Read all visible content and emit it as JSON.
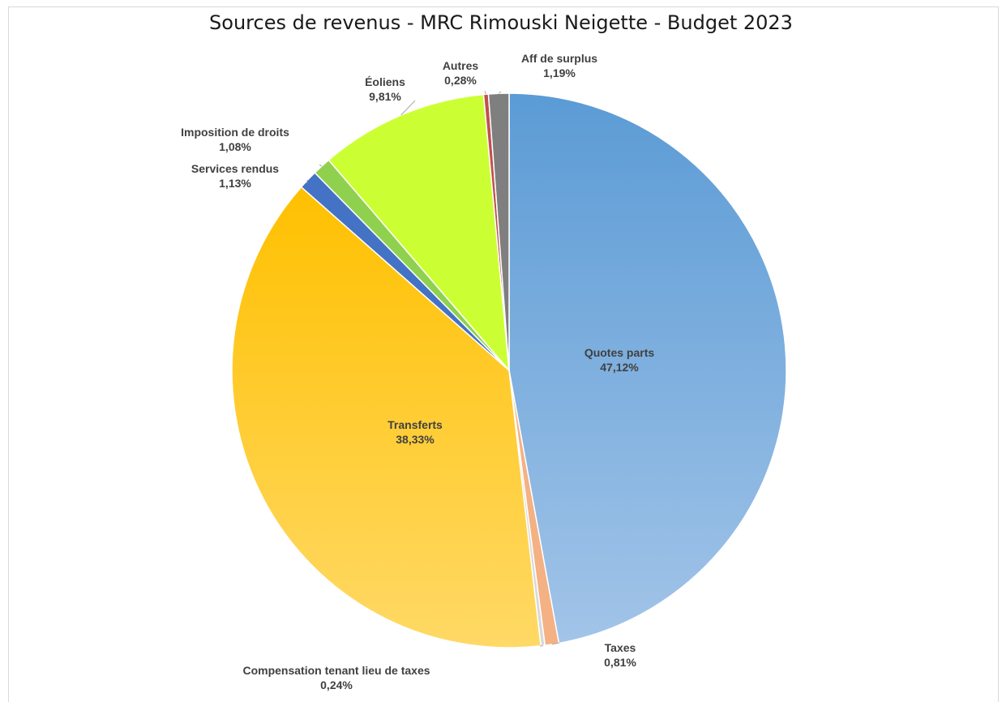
{
  "chart_data": {
    "type": "pie",
    "title": "Sources de revenus - MRC Rimouski Neigette - Budget 2023",
    "slices": [
      {
        "name": "Quotes parts",
        "value": 47.12,
        "label": "47,12%",
        "color": "#7fadd9"
      },
      {
        "name": "Taxes",
        "value": 0.81,
        "label": "0,81%",
        "color": "#f4b183"
      },
      {
        "name": "Compensation tenant lieu de taxes",
        "value": 0.24,
        "label": "0,24%",
        "color": "#d9d9d9"
      },
      {
        "name": "Transferts",
        "value": 38.33,
        "label": "38,33%",
        "color": "#ffcc33"
      },
      {
        "name": "Services rendus",
        "value": 1.13,
        "label": "1,13%",
        "color": "#4472c4"
      },
      {
        "name": "Imposition de droits",
        "value": 1.08,
        "label": "1,08%",
        "color": "#8fd14f"
      },
      {
        "name": "Éoliens",
        "value": 9.81,
        "label": "9,81%",
        "color": "#ccff33"
      },
      {
        "name": "Autres",
        "value": 0.28,
        "label": "0,28%",
        "color": "#c0504d"
      },
      {
        "name": "Aff de surplus",
        "value": 1.19,
        "label": "1,19%",
        "color": "#7f7f7f"
      }
    ]
  }
}
